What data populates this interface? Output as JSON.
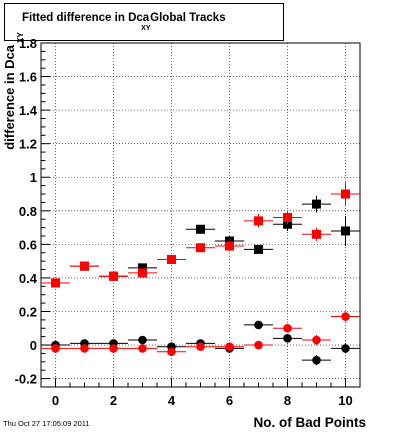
{
  "chart_data": {
    "type": "scatter",
    "title": {
      "main": "Fitted difference in Dca",
      "sub": "XY",
      "tail": "Global Tracks"
    },
    "xlabel": "No. of Bad Points",
    "ylabel": {
      "main": "difference in Dca",
      "sub": "XY"
    },
    "xlim": [
      -0.5,
      10.5
    ],
    "ylim": [
      -0.25,
      1.8
    ],
    "xticks": [
      0,
      2,
      4,
      6,
      8,
      10
    ],
    "yticks": [
      -0.2,
      0,
      0.2,
      0.4,
      0.6,
      0.8,
      1,
      1.2,
      1.4,
      1.6,
      1.8
    ],
    "ytick_labels": [
      "-0.2",
      "0",
      "0.2",
      "0.4",
      "0.6",
      "0.8",
      "1",
      "1.2",
      "1.4",
      "1.6",
      "1.8"
    ],
    "grid": true,
    "x_error": 0.5,
    "series": [
      {
        "marker": "square",
        "color": "#000000",
        "x": [
          0,
          1,
          2,
          3,
          4,
          5,
          6,
          7,
          8,
          9,
          10
        ],
        "y": [
          0.37,
          0.47,
          0.41,
          0.46,
          0.51,
          0.69,
          0.62,
          0.57,
          0.72,
          0.84,
          0.68
        ],
        "yerr": [
          0.012,
          0.012,
          0.012,
          0.015,
          0.015,
          0.025,
          0.03,
          0.02,
          0.04,
          0.05,
          0.09
        ]
      },
      {
        "marker": "square",
        "color": "#ff0000",
        "x": [
          0,
          1,
          2,
          3,
          4,
          5,
          6,
          7,
          8,
          9,
          10
        ],
        "y": [
          0.37,
          0.47,
          0.41,
          0.43,
          0.51,
          0.58,
          0.59,
          0.74,
          0.76,
          0.66,
          0.9
        ],
        "yerr": [
          0.012,
          0.012,
          0.012,
          0.015,
          0.015,
          0.02,
          0.03,
          0.04,
          0.04,
          0.04,
          0.07
        ]
      },
      {
        "marker": "circle",
        "color": "#000000",
        "x": [
          0,
          1,
          2,
          3,
          4,
          5,
          6,
          7,
          8,
          9,
          10
        ],
        "y": [
          0.0,
          0.01,
          0.01,
          0.03,
          -0.01,
          0.01,
          -0.02,
          0.12,
          0.04,
          -0.09,
          -0.02
        ],
        "yerr": [
          0.008,
          0.008,
          0.008,
          0.01,
          0.01,
          0.015,
          0.02,
          0.02,
          0.02,
          0.03,
          0.03
        ]
      },
      {
        "marker": "circle",
        "color": "#ff0000",
        "x": [
          0,
          1,
          2,
          3,
          4,
          5,
          6,
          7,
          8,
          9,
          10
        ],
        "y": [
          -0.02,
          -0.02,
          -0.02,
          -0.02,
          -0.04,
          -0.01,
          -0.01,
          0.0,
          0.1,
          0.03,
          0.17
        ],
        "yerr": [
          0.008,
          0.008,
          0.008,
          0.01,
          0.01,
          0.015,
          0.02,
          0.02,
          0.02,
          0.03,
          0.03
        ]
      }
    ]
  },
  "timestamp": "Thu Oct 27 17:05:09 2011"
}
